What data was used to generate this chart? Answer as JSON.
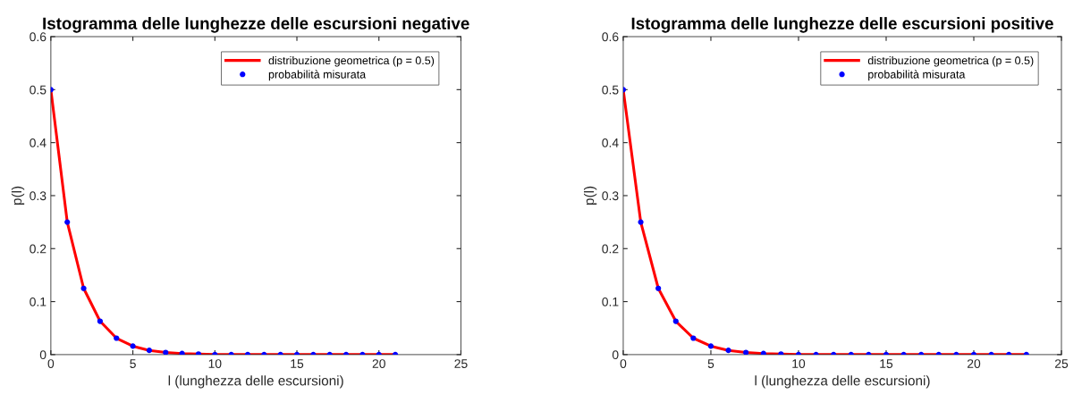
{
  "chart_data": [
    {
      "type": "line",
      "title": "Istogramma delle lunghezze delle escursioni negative",
      "xlabel": "l (lunghezza delle escursioni)",
      "ylabel": "p(l)",
      "x": [
        0,
        1,
        2,
        3,
        4,
        5,
        6,
        7,
        8,
        9,
        10,
        11,
        12,
        13,
        14,
        15,
        16,
        17,
        18,
        19,
        20,
        21
      ],
      "series": [
        {
          "name": "distribuzione geometrica (p = 0.5)",
          "type": "line",
          "color": "#ff0000",
          "marker": "none",
          "values": [
            0.5,
            0.25,
            0.125,
            0.063,
            0.031,
            0.016,
            0.008,
            0.004,
            0.002,
            0.001,
            0,
            0,
            0,
            0,
            0,
            0,
            0,
            0,
            0,
            0,
            0,
            0
          ]
        },
        {
          "name": "probabilità misurata",
          "type": "scatter",
          "color": "#0000ff",
          "marker": "circle",
          "values": [
            0.5,
            0.25,
            0.125,
            0.063,
            0.031,
            0.016,
            0.008,
            0.004,
            0.002,
            0.001,
            0,
            0,
            0,
            0,
            0,
            0,
            0,
            0,
            0,
            0,
            0,
            0
          ]
        }
      ],
      "xlim": [
        0,
        25
      ],
      "xticks": [
        0,
        5,
        10,
        15,
        20,
        25
      ],
      "ylim": [
        0,
        0.6
      ],
      "yticks": [
        0,
        0.1,
        0.2,
        0.3,
        0.4,
        0.5,
        0.6
      ],
      "grid": false,
      "legend": "top right"
    },
    {
      "type": "line",
      "title": "Istogramma delle lunghezze delle escursioni positive",
      "xlabel": "l (lunghezza delle escursioni)",
      "ylabel": "p(l)",
      "x": [
        0,
        1,
        2,
        3,
        4,
        5,
        6,
        7,
        8,
        9,
        10,
        11,
        12,
        13,
        14,
        15,
        16,
        17,
        18,
        19,
        20,
        21,
        22,
        23
      ],
      "series": [
        {
          "name": "distribuzione geometrica (p = 0.5)",
          "type": "line",
          "color": "#ff0000",
          "marker": "none",
          "values": [
            0.5,
            0.25,
            0.125,
            0.063,
            0.031,
            0.016,
            0.008,
            0.004,
            0.002,
            0.001,
            0,
            0,
            0,
            0,
            0,
            0,
            0,
            0,
            0,
            0,
            0,
            0,
            0,
            0
          ]
        },
        {
          "name": "probabilità misurata",
          "type": "scatter",
          "color": "#0000ff",
          "marker": "circle",
          "values": [
            0.5,
            0.25,
            0.125,
            0.063,
            0.031,
            0.016,
            0.008,
            0.004,
            0.002,
            0.001,
            0,
            0,
            0,
            0,
            0,
            0,
            0,
            0,
            0,
            0,
            0,
            0,
            0,
            0
          ]
        }
      ],
      "xlim": [
        0,
        25
      ],
      "xticks": [
        0,
        5,
        10,
        15,
        20,
        25
      ],
      "ylim": [
        0,
        0.6
      ],
      "yticks": [
        0,
        0.1,
        0.2,
        0.3,
        0.4,
        0.5,
        0.6
      ],
      "grid": false,
      "legend": "top right"
    }
  ]
}
